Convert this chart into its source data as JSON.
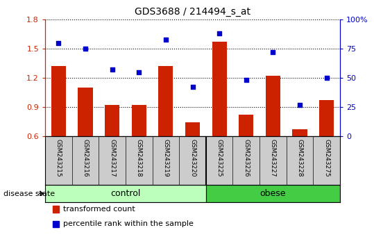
{
  "title": "GDS3688 / 214494_s_at",
  "samples": [
    "GSM243215",
    "GSM243216",
    "GSM243217",
    "GSM243218",
    "GSM243219",
    "GSM243220",
    "GSM243225",
    "GSM243226",
    "GSM243227",
    "GSM243228",
    "GSM243275"
  ],
  "transformed_count": [
    1.32,
    1.1,
    0.92,
    0.92,
    1.32,
    0.74,
    1.57,
    0.82,
    1.22,
    0.67,
    0.97
  ],
  "percentile_rank": [
    80,
    75,
    57,
    55,
    83,
    42,
    88,
    48,
    72,
    27,
    50
  ],
  "bar_color": "#cc2200",
  "dot_color": "#0000cc",
  "ylim_left": [
    0.6,
    1.8
  ],
  "ylim_right": [
    0,
    100
  ],
  "yticks_left": [
    0.6,
    0.9,
    1.2,
    1.5,
    1.8
  ],
  "yticks_right": [
    0,
    25,
    50,
    75,
    100
  ],
  "ytick_labels_right": [
    "0",
    "25",
    "50",
    "75",
    "100%"
  ],
  "n_control": 6,
  "control_color": "#bbffbb",
  "obese_color": "#44cc44",
  "label_bar": "transformed count",
  "label_dot": "percentile rank within the sample",
  "disease_state_label": "disease state",
  "control_label": "control",
  "obese_label": "obese"
}
